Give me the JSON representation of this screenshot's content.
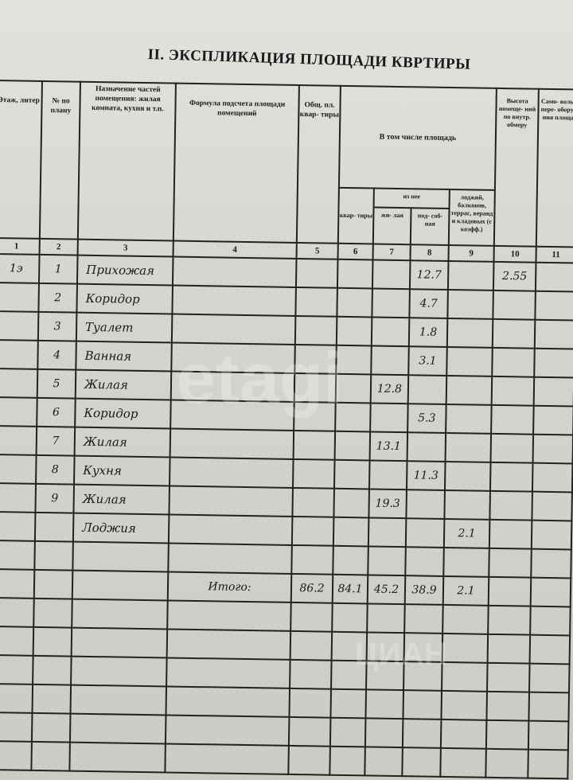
{
  "title": "II. ЭКСПЛИКАЦИЯ ПЛОЩАДИ КВРТИРЫ",
  "headers": {
    "c1": "Этаж, литер",
    "c2": "№ по плану",
    "c3": "Назначение частей помещения: жилая комната, кухня и т.п.",
    "c4": "Формула подсчета площади помещений",
    "c5": "Общ. пл. квар- тиры",
    "group": "В том числе площадь",
    "c6": "квар- тиры",
    "subgroup": "из нее",
    "c7": "жи- лая",
    "c8": "под- соб- ная",
    "c9": "лоджий, балконов, террас, веранд и кладовых (с коэфф.)",
    "c10": "Высота помеще- ний по внутр. обмеру",
    "c11": "Само- воль- пере- обору- ния площа"
  },
  "col_numbers": [
    "1",
    "2",
    "3",
    "4",
    "5",
    "6",
    "7",
    "8",
    "9",
    "10",
    "11"
  ],
  "rows": [
    {
      "floor": "1э",
      "num": "1",
      "name": "Прихожая",
      "c5": "",
      "c6": "",
      "c7": "",
      "c8": "12.7",
      "c9": "",
      "c10": "2.55"
    },
    {
      "floor": "",
      "num": "2",
      "name": "Коридор",
      "c5": "",
      "c6": "",
      "c7": "",
      "c8": "4.7",
      "c9": "",
      "c10": ""
    },
    {
      "floor": "",
      "num": "3",
      "name": "Туалет",
      "c5": "",
      "c6": "",
      "c7": "",
      "c8": "1.8",
      "c9": "",
      "c10": ""
    },
    {
      "floor": "",
      "num": "4",
      "name": "Ванная",
      "c5": "",
      "c6": "",
      "c7": "",
      "c8": "3.1",
      "c9": "",
      "c10": ""
    },
    {
      "floor": "",
      "num": "5",
      "name": "Жилая",
      "c5": "",
      "c6": "",
      "c7": "12.8",
      "c8": "",
      "c9": "",
      "c10": ""
    },
    {
      "floor": "",
      "num": "6",
      "name": "Коридор",
      "c5": "",
      "c6": "",
      "c7": "",
      "c8": "5.3",
      "c9": "",
      "c10": ""
    },
    {
      "floor": "",
      "num": "7",
      "name": "Жилая",
      "c5": "",
      "c6": "",
      "c7": "13.1",
      "c8": "",
      "c9": "",
      "c10": ""
    },
    {
      "floor": "",
      "num": "8",
      "name": "Кухня",
      "c5": "",
      "c6": "",
      "c7": "",
      "c8": "11.3",
      "c9": "",
      "c10": ""
    },
    {
      "floor": "",
      "num": "9",
      "name": "Жилая",
      "c5": "",
      "c6": "",
      "c7": "19.3",
      "c8": "",
      "c9": "",
      "c10": ""
    },
    {
      "floor": "",
      "num": "",
      "name": "Лоджия",
      "c5": "",
      "c6": "",
      "c7": "",
      "c8": "",
      "c9": "2.1",
      "c10": ""
    },
    {
      "floor": "",
      "num": "",
      "name": "",
      "c5": "",
      "c6": "",
      "c7": "",
      "c8": "",
      "c9": "",
      "c10": ""
    }
  ],
  "total": {
    "label": "Итого:",
    "c5": "86.2",
    "c6": "84.1",
    "c7": "45.2",
    "c8": "38.9",
    "c9": "2.1"
  },
  "blank_rows": 6,
  "watermarks": {
    "etagi": "etagi",
    "cian": "ЦИАН"
  }
}
